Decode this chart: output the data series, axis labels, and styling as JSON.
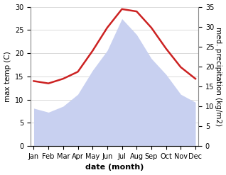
{
  "months": [
    "Jan",
    "Feb",
    "Mar",
    "Apr",
    "May",
    "Jun",
    "Jul",
    "Aug",
    "Sep",
    "Oct",
    "Nov",
    "Dec"
  ],
  "max_temp": [
    14.0,
    13.5,
    14.5,
    16.0,
    20.5,
    25.5,
    29.5,
    29.0,
    25.5,
    21.0,
    17.0,
    14.5
  ],
  "precipitation": [
    9.5,
    8.5,
    10.0,
    13.0,
    19.0,
    24.0,
    32.0,
    28.0,
    22.0,
    18.0,
    13.0,
    11.0
  ],
  "temp_color": "#cc2222",
  "precip_fill_color": "#c8d0f0",
  "xlabel": "date (month)",
  "ylabel_left": "max temp (C)",
  "ylabel_right": "med. precipitation (kg/m2)",
  "ylim_left": [
    0,
    30
  ],
  "ylim_right": [
    0,
    35
  ],
  "yticks_left": [
    0,
    5,
    10,
    15,
    20,
    25,
    30
  ],
  "yticks_right": [
    0,
    5,
    10,
    15,
    20,
    25,
    30,
    35
  ],
  "bg_color": "#ffffff",
  "temp_linewidth": 1.8,
  "xlabel_fontsize": 8,
  "ylabel_fontsize": 7.5,
  "tick_fontsize": 7
}
